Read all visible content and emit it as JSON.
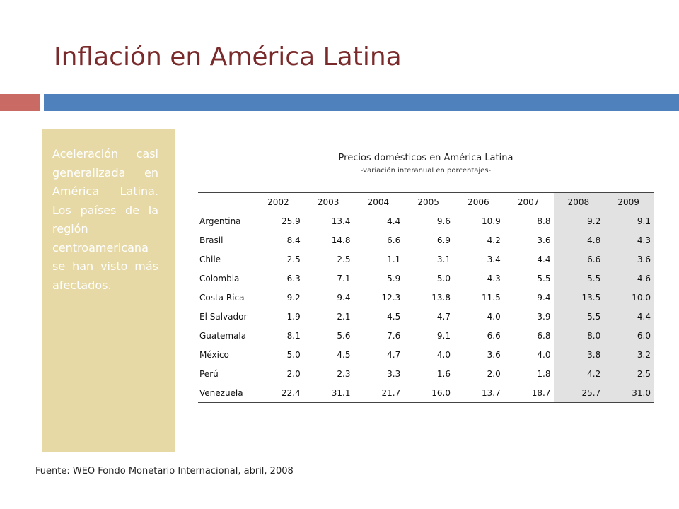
{
  "title": "Inflación en América Latina",
  "colors": {
    "title": "#7a2a2a",
    "accent_red": "#c96a65",
    "accent_blue": "#4f81bd",
    "sidebox": "#e6d9a6",
    "highlight_col": "#e2e2e2"
  },
  "sidebox": {
    "text": "Aceleración casi generalizada en América Latina. Los países de la región centroamericana se han visto más afectados."
  },
  "table": {
    "title": "Precios domésticos en América Latina",
    "subtitle": "-variación interanual en porcentajes-",
    "years": [
      "2002",
      "2003",
      "2004",
      "2005",
      "2006",
      "2007",
      "2008",
      "2009"
    ],
    "highlight_years": [
      "2008",
      "2009"
    ],
    "rows": [
      {
        "country": "Argentina",
        "values": [
          "25.9",
          "13.4",
          "4.4",
          "9.6",
          "10.9",
          "8.8",
          "9.2",
          "9.1"
        ]
      },
      {
        "country": "Brasil",
        "values": [
          "8.4",
          "14.8",
          "6.6",
          "6.9",
          "4.2",
          "3.6",
          "4.8",
          "4.3"
        ]
      },
      {
        "country": "Chile",
        "values": [
          "2.5",
          "2.5",
          "1.1",
          "3.1",
          "3.4",
          "4.4",
          "6.6",
          "3.6"
        ]
      },
      {
        "country": "Colombia",
        "values": [
          "6.3",
          "7.1",
          "5.9",
          "5.0",
          "4.3",
          "5.5",
          "5.5",
          "4.6"
        ]
      },
      {
        "country": "Costa Rica",
        "values": [
          "9.2",
          "9.4",
          "12.3",
          "13.8",
          "11.5",
          "9.4",
          "13.5",
          "10.0"
        ]
      },
      {
        "country": "El Salvador",
        "values": [
          "1.9",
          "2.1",
          "4.5",
          "4.7",
          "4.0",
          "3.9",
          "5.5",
          "4.4"
        ]
      },
      {
        "country": "Guatemala",
        "values": [
          "8.1",
          "5.6",
          "7.6",
          "9.1",
          "6.6",
          "6.8",
          "8.0",
          "6.0"
        ]
      },
      {
        "country": "México",
        "values": [
          "5.0",
          "4.5",
          "4.7",
          "4.0",
          "3.6",
          "4.0",
          "3.8",
          "3.2"
        ]
      },
      {
        "country": "Perú",
        "values": [
          "2.0",
          "2.3",
          "3.3",
          "1.6",
          "2.0",
          "1.8",
          "4.2",
          "2.5"
        ]
      },
      {
        "country": "Venezuela",
        "values": [
          "22.4",
          "31.1",
          "21.7",
          "16.0",
          "13.7",
          "18.7",
          "25.7",
          "31.0"
        ]
      }
    ]
  },
  "source": "Fuente: WEO Fondo Monetario Internacional, abril, 2008"
}
